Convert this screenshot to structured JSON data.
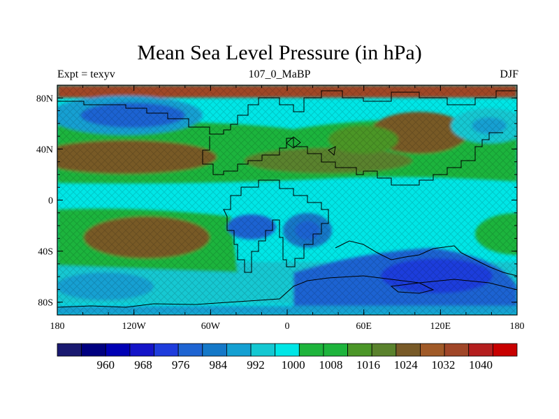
{
  "title": "Mean Sea Level Pressure (in hPa)",
  "subtitle_left": "Expt = texyv",
  "subtitle_center": "107_0_MaBP",
  "subtitle_right": "DJF",
  "map": {
    "lon_range": [
      -180,
      180
    ],
    "lat_range": [
      -90,
      90
    ],
    "lon_ticks": [
      {
        "value": -180,
        "label": "180"
      },
      {
        "value": -120,
        "label": "120W"
      },
      {
        "value": -60,
        "label": "60W"
      },
      {
        "value": 0,
        "label": "0"
      },
      {
        "value": 60,
        "label": "60E"
      },
      {
        "value": 120,
        "label": "120E"
      },
      {
        "value": 180,
        "label": "180"
      }
    ],
    "lat_ticks": [
      {
        "value": 80,
        "label": "80N"
      },
      {
        "value": 40,
        "label": "40N"
      },
      {
        "value": 0,
        "label": "0"
      },
      {
        "value": -40,
        "label": "40S"
      },
      {
        "value": -80,
        "label": "80S"
      }
    ]
  },
  "colorbar": {
    "colors": [
      "#191970",
      "#000080",
      "#0000b4",
      "#1414c8",
      "#1e3cdc",
      "#1e64d2",
      "#1478c8",
      "#14a0d2",
      "#14c8d2",
      "#00e6e6",
      "#1eb43c",
      "#1eb43c",
      "#4b9628",
      "#5a822d",
      "#785a28",
      "#a05a28",
      "#a04628",
      "#b41e1e",
      "#c80000"
    ],
    "labels": [
      "960",
      "968",
      "976",
      "984",
      "992",
      "1000",
      "1008",
      "1016",
      "1024",
      "1032",
      "1040"
    ]
  }
}
